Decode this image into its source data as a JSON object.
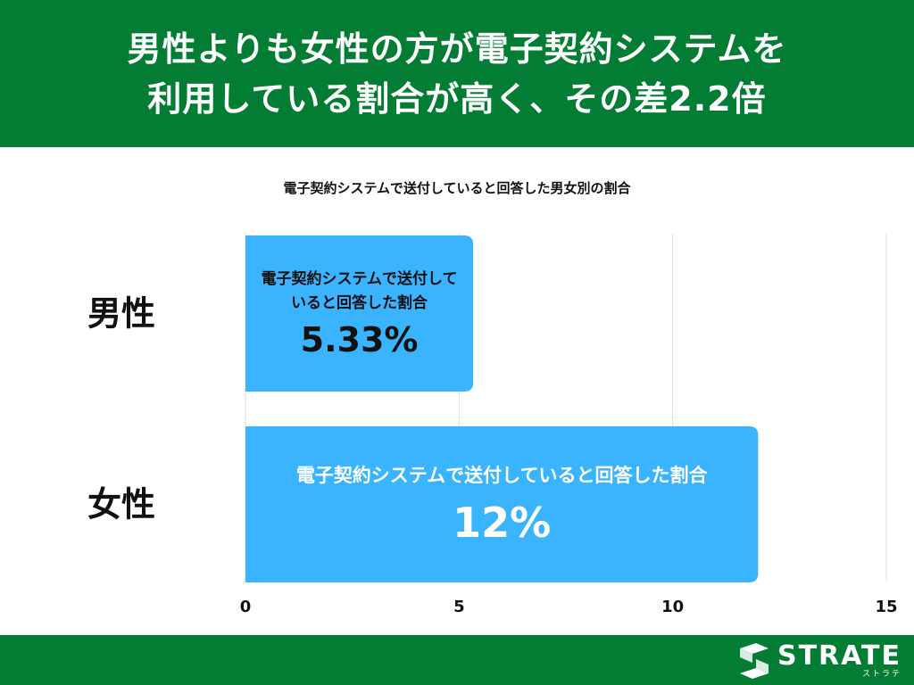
{
  "header": {
    "title_line1": "男性よりも女性の方が電子契約システムを",
    "title_line2": "利用している割合が高く、その差2.2倍"
  },
  "chart_data": {
    "type": "bar",
    "orientation": "horizontal",
    "title": "電子契約システムで送付していると回答した男女別の割合",
    "categories": [
      "男性",
      "女性"
    ],
    "values": [
      5.33,
      12
    ],
    "value_labels": [
      "5.33%",
      "12%"
    ],
    "bar_label": "電子契約システムで送付していると回答した割合",
    "bar_label_lines_male": [
      "電子契約システムで送付して",
      "いると回答した割合"
    ],
    "xlim": [
      0,
      15
    ],
    "xticks": [
      "0",
      "5",
      "10",
      "15"
    ],
    "grid": true,
    "colors": {
      "bar": "#3BB4FF",
      "header": "#037D33",
      "grid": "#DDDDDD"
    }
  },
  "footer": {
    "logo_text": "STRATE",
    "logo_sub": "ストラテ"
  }
}
